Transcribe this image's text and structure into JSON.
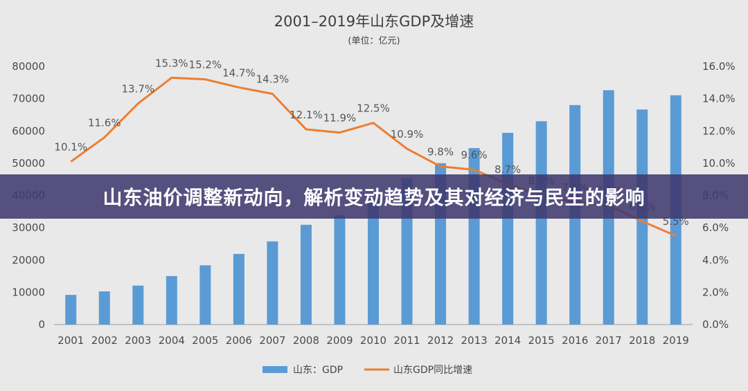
{
  "banner": {
    "text": "山东油价调整新动向，解析变动趋势及其对经济与民生的影响"
  },
  "colors": {
    "bar": "#5b9bd5",
    "line": "#ed7d31",
    "banner_bg": "#3e376e",
    "background": "#e9e9e9"
  },
  "chart_data": {
    "type": "bar+line",
    "title": "2001–2019年山东GDP及增速",
    "subtitle": "(单位：亿元)",
    "categories": [
      "2001",
      "2002",
      "2003",
      "2004",
      "2005",
      "2006",
      "2007",
      "2008",
      "2009",
      "2010",
      "2011",
      "2012",
      "2013",
      "2014",
      "2015",
      "2016",
      "2017",
      "2018",
      "2019"
    ],
    "series": [
      {
        "name": "山东：GDP",
        "type": "bar",
        "axis": "left",
        "values": [
          9195,
          10276,
          12078,
          15022,
          18367,
          21900,
          25777,
          30933,
          33897,
          39170,
          45362,
          50013,
          54684,
          59427,
          63002,
          68024,
          72634,
          66649,
          71068
        ]
      },
      {
        "name": "山东GDP同比增速",
        "type": "line",
        "axis": "right",
        "values": [
          10.1,
          11.6,
          13.7,
          15.3,
          15.2,
          14.7,
          14.3,
          12.1,
          11.9,
          12.5,
          10.9,
          9.8,
          9.6,
          8.7,
          8.0,
          7.6,
          7.4,
          6.4,
          5.5
        ],
        "labels": [
          "10.1%",
          "11.6%",
          "13.7%",
          "15.3%",
          "15.2%",
          "14.7%",
          "14.3%",
          "12.1%",
          "11.9%",
          "12.5%",
          "10.9%",
          "9.8%",
          "9.6%",
          "8.7%",
          "8.0%",
          "7.6%",
          "7.4%",
          "6.4%",
          "5.5%"
        ]
      }
    ],
    "y_left": {
      "min": 0,
      "max": 80000,
      "ticks": [
        "0",
        "10000",
        "20000",
        "30000",
        "40000",
        "50000",
        "60000",
        "70000",
        "80000"
      ]
    },
    "y_right": {
      "min": 0,
      "max": 16,
      "ticks": [
        "0.0%",
        "2.0%",
        "4.0%",
        "6.0%",
        "8.0%",
        "10.0%",
        "12.0%",
        "14.0%",
        "16.0%"
      ]
    },
    "legend": {
      "position": "bottom",
      "items": [
        "山东：GDP",
        "山东GDP同比增速"
      ]
    },
    "grid": false
  }
}
